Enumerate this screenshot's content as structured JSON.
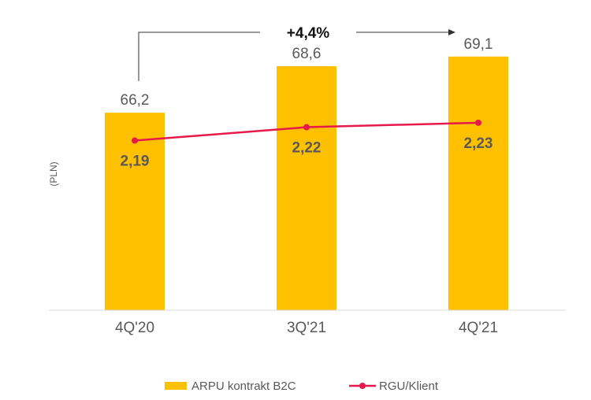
{
  "chart_data": {
    "type": "bar+line",
    "categories": [
      "4Q'20",
      "3Q'21",
      "4Q'21"
    ],
    "ylabel": "(PLN)",
    "series": [
      {
        "name": "ARPU kontrakt B2C",
        "type": "bar",
        "values": [
          66.2,
          68.6,
          69.1
        ],
        "labels": [
          "66,2",
          "68,6",
          "69,1"
        ],
        "color": "#FFC000",
        "ylim": [
          56,
          70.8
        ]
      },
      {
        "name": "RGU/Klient",
        "type": "line",
        "values": [
          2.19,
          2.22,
          2.23
        ],
        "labels": [
          "2,19",
          "2,22",
          "2,23"
        ],
        "color": "#E6194B",
        "ylim": [
          1.81,
          2.452
        ],
        "axis": "secondary"
      }
    ],
    "annotation": {
      "text": "+4,4%",
      "from": "4Q'20",
      "to": "4Q'21"
    },
    "legend": {
      "position": "bottom"
    },
    "grid": false
  }
}
